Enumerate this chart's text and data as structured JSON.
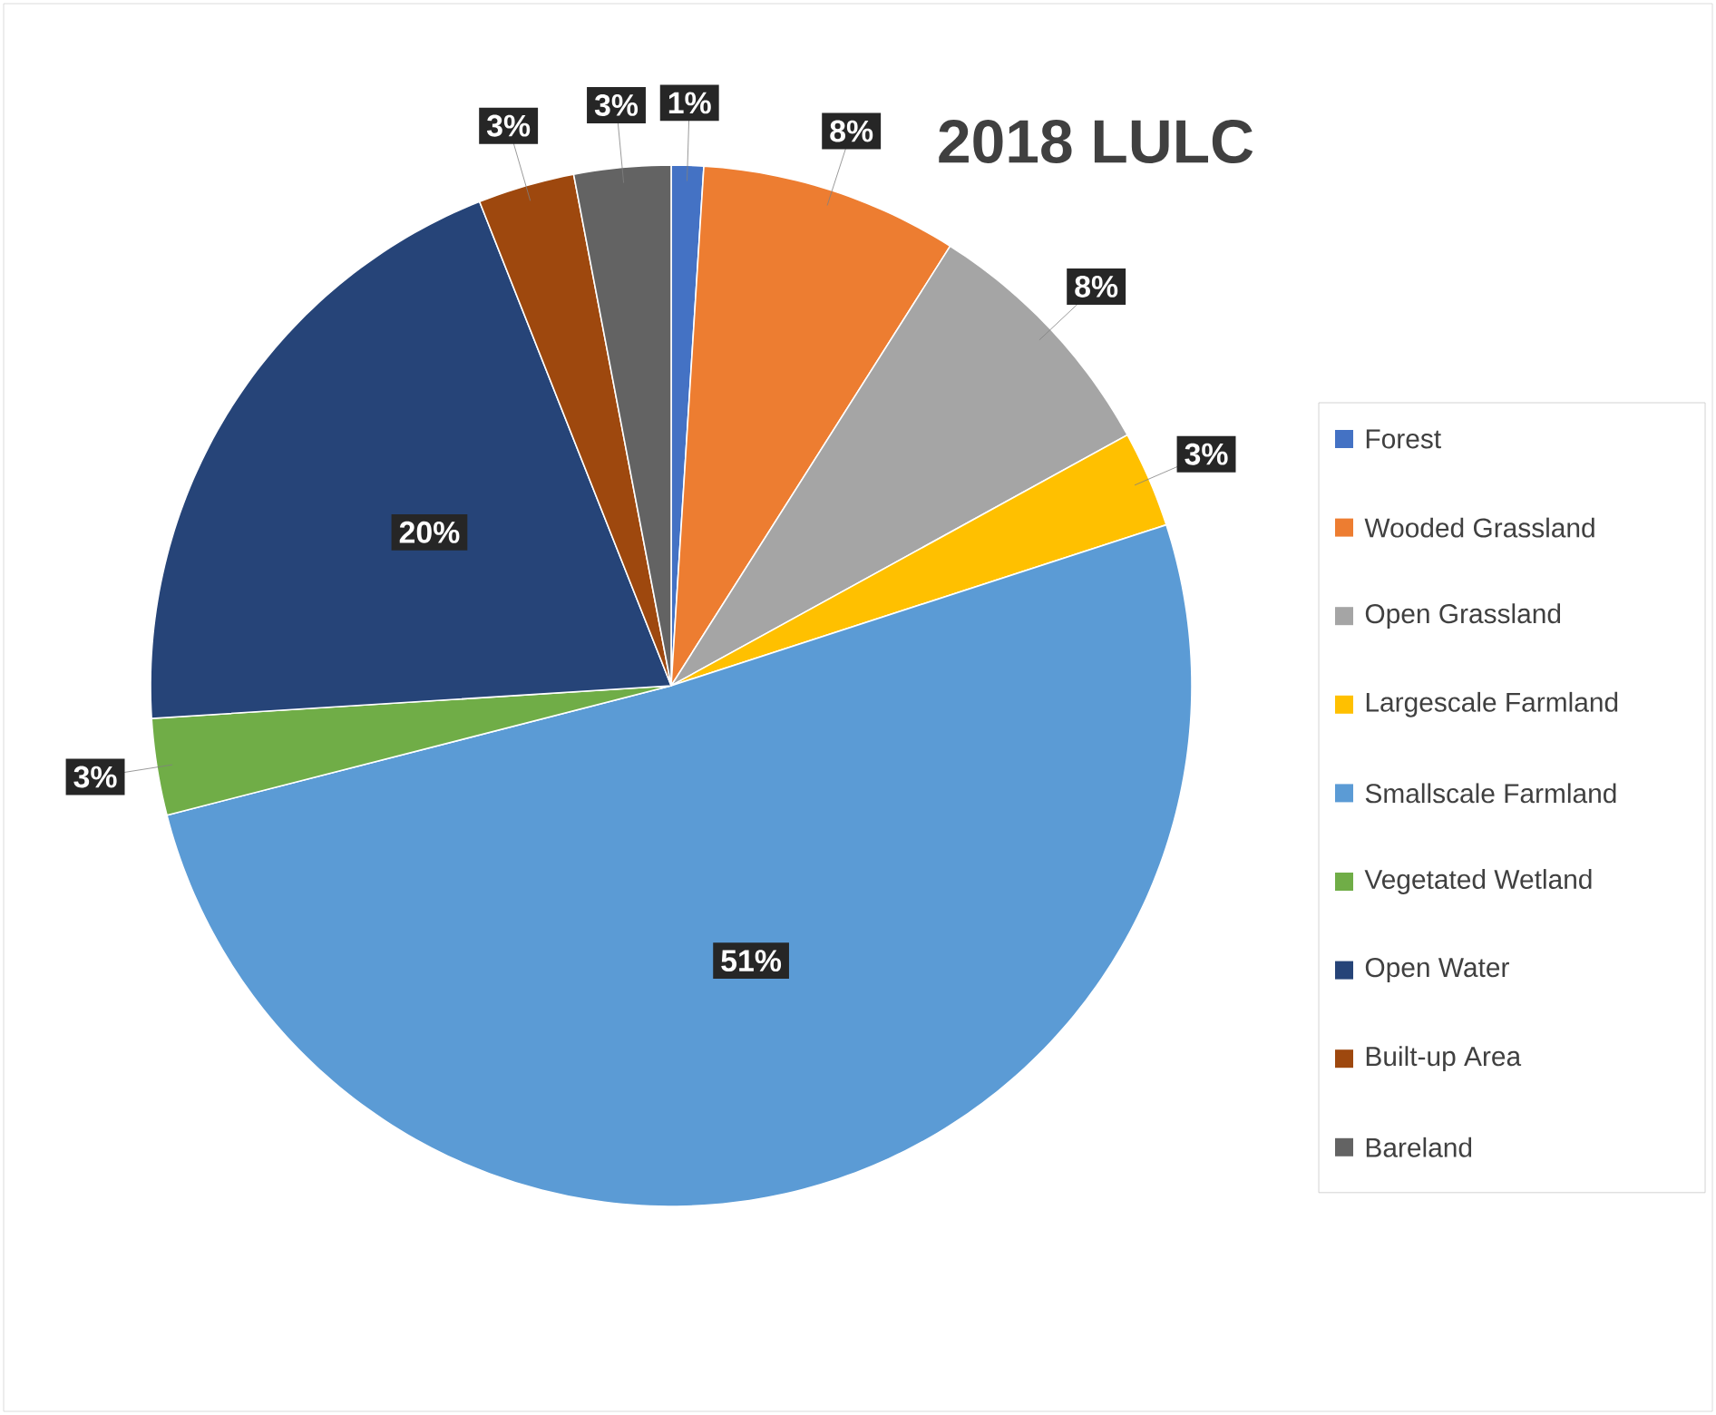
{
  "chart_data": {
    "type": "pie",
    "title": "2018 LULC",
    "categories": [
      "Forest",
      "Wooded Grassland",
      "Open Grassland",
      "Largescale Farmland",
      "Smallscale Farmland",
      "Vegetated Wetland",
      "Open Water",
      "Built-up Area",
      "Bareland"
    ],
    "values": [
      1,
      8,
      8,
      3,
      51,
      3,
      20,
      3,
      3
    ],
    "value_labels": [
      "1%",
      "8%",
      "8%",
      "3%",
      "51%",
      "3%",
      "20%",
      "3%",
      "3%"
    ],
    "colors": [
      "#4472c4",
      "#ed7d31",
      "#a5a5a5",
      "#ffc000",
      "#5b9bd5",
      "#70ad47",
      "#264478",
      "#9e480e",
      "#636363"
    ],
    "legend": "right"
  }
}
